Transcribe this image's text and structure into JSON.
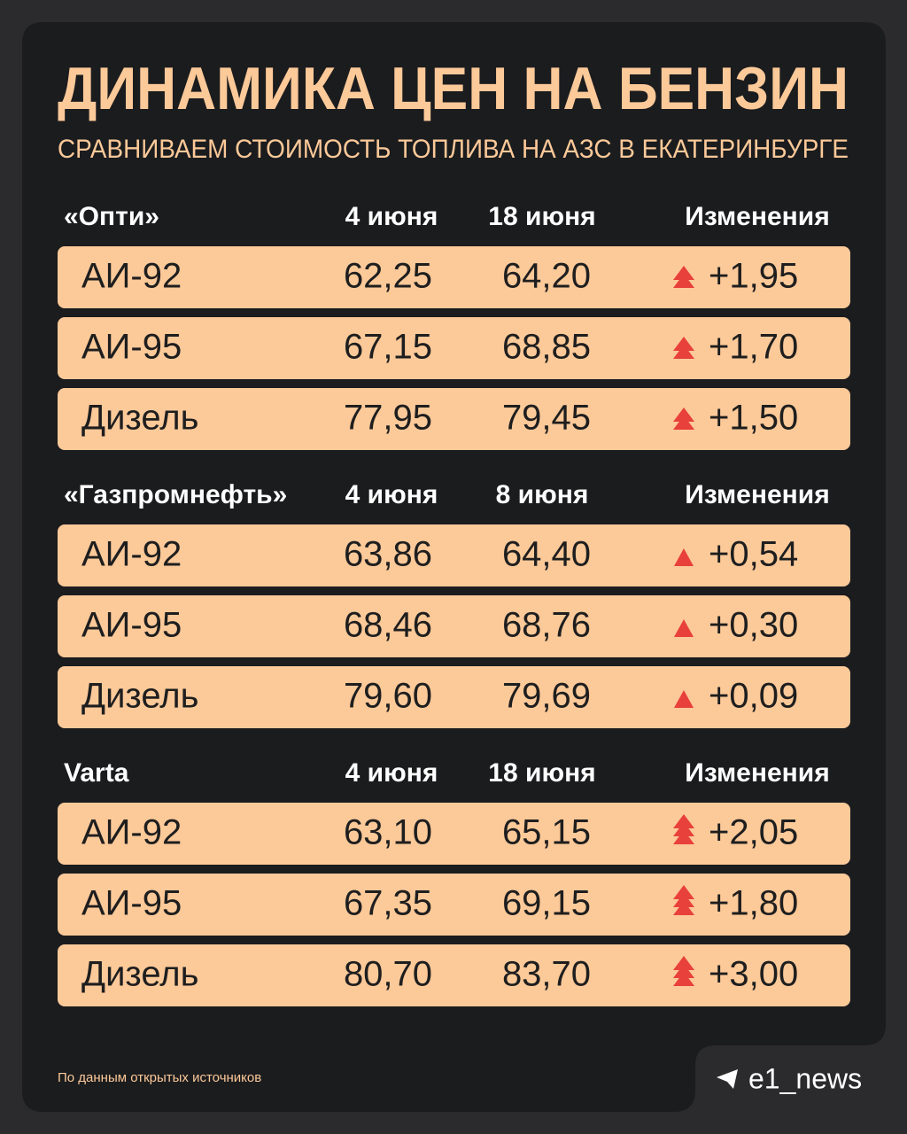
{
  "header": {
    "title": "ДИНАМИКА ЦЕН НА БЕНЗИН",
    "subtitle": "СРАВНИВАЕМ СТОИМОСТЬ ТОПЛИВА НА АЗС В ЕКАТЕРИНБУРГЕ"
  },
  "sections": [
    {
      "columns": [
        "«Опти»",
        "4 июня",
        "18 июня",
        "Изменения"
      ],
      "rows": [
        [
          "АИ-92",
          "62,25",
          "64,20",
          "+1,95"
        ],
        [
          "АИ-95",
          "67,15",
          "68,85",
          "+1,70"
        ],
        [
          "Дизель",
          "77,95",
          "79,45",
          "+1,50"
        ]
      ]
    },
    {
      "columns": [
        "«Газпромнефть»",
        "4 июня",
        "8 июня",
        "Изменения"
      ],
      "rows": [
        [
          "АИ-92",
          "63,86",
          "64,40",
          "+0,54"
        ],
        [
          "АИ-95",
          "68,46",
          "68,76",
          "+0,30"
        ],
        [
          "Дизель",
          "79,60",
          "79,69",
          "+0,09"
        ]
      ]
    },
    {
      "columns": [
        "Varta",
        "4 июня",
        "18 июня",
        "Изменения"
      ],
      "rows": [
        [
          "АИ-92",
          "63,10",
          "65,15",
          "+2,05"
        ],
        [
          "АИ-95",
          "67,35",
          "69,15",
          "+1,80"
        ],
        [
          "Дизель",
          "80,70",
          "83,70",
          "+3,00"
        ]
      ]
    }
  ],
  "footer": {
    "source": "По данным открытых источников",
    "brand": "e1_news"
  }
}
